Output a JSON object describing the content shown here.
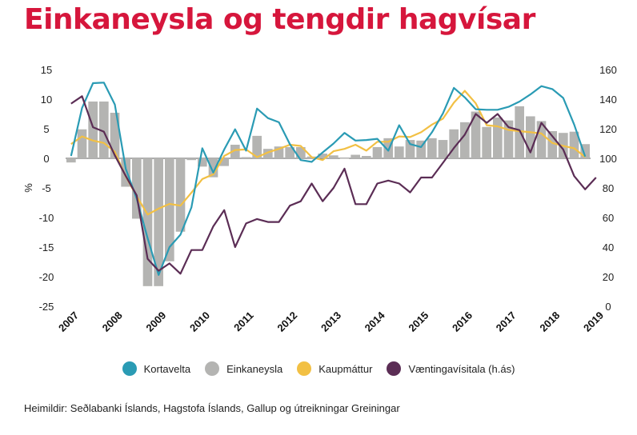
{
  "title": "Einkaneysla og tengdir hagvísar",
  "source": "Heimildir: Seðlabanki Íslands, Hagstofa Íslands, Gallup og útreikningar Greiningar",
  "colors": {
    "title": "#d6163c",
    "kortavelta": "#2a9bb4",
    "einkaneysla": "#b4b4b2",
    "kaupmattur": "#f2c044",
    "vantingavisitala": "#5b2d55"
  },
  "chart_data": {
    "type": "bar",
    "xlabel": "",
    "ylabel": "%",
    "ylim": [
      -25,
      15
    ],
    "y2lim": [
      0,
      160
    ],
    "yticks": [
      15,
      10,
      5,
      0,
      -5,
      -10,
      -15,
      -20,
      -25
    ],
    "y2ticks": [
      160,
      140,
      120,
      100,
      80,
      60,
      40,
      20,
      0
    ],
    "xticks": [
      "2007",
      "2008",
      "2009",
      "2010",
      "2011",
      "2012",
      "2013",
      "2014",
      "2015",
      "2016",
      "2017",
      "2018",
      "2019"
    ],
    "x_start": 2007,
    "legend_position": "bottom",
    "series": [
      {
        "name": "Einkaneysla",
        "kind": "bar",
        "values": [
          -0.7,
          4.9,
          9.6,
          9.6,
          7.7,
          -4.8,
          -10.2,
          -21.6,
          -21.6,
          -17.4,
          -12.4,
          -0.3,
          -1.4,
          -3.2,
          -1.3,
          2.3,
          0.2,
          3.8,
          1.6,
          2.0,
          1.9,
          1.9,
          0.3,
          0.8,
          0.5,
          0.0,
          0.6,
          0.4,
          1.9,
          3.4,
          2.0,
          3.1,
          3.0,
          3.4,
          3.1,
          4.9,
          6.1,
          7.9,
          5.3,
          6.9,
          6.4,
          8.8,
          7.1,
          6.3,
          4.6,
          4.3,
          4.5,
          2.4
        ]
      },
      {
        "name": "Kortavelta",
        "kind": "line",
        "axis": "left",
        "values": [
          0.4,
          8.5,
          12.7,
          12.8,
          9.1,
          -1.8,
          -6.8,
          -13.5,
          -19.7,
          -15.0,
          -12.9,
          -8.3,
          1.7,
          -2.4,
          1.5,
          4.9,
          1.3,
          8.4,
          6.8,
          6.1,
          2.4,
          -0.3,
          -0.6,
          1.0,
          2.5,
          4.3,
          3.0,
          3.1,
          3.3,
          1.3,
          5.6,
          2.4,
          1.9,
          4.4,
          7.6,
          11.9,
          10.3,
          8.3,
          8.2,
          8.2,
          8.7,
          9.6,
          10.8,
          12.2,
          11.7,
          10.2,
          5.7,
          0.3
        ]
      },
      {
        "name": "Kaupmáttur",
        "kind": "line",
        "axis": "left",
        "values": [
          2.4,
          3.7,
          3.0,
          2.6,
          1.1,
          -3.1,
          -6.4,
          -9.5,
          -8.5,
          -7.7,
          -8.0,
          -5.8,
          -3.5,
          -2.7,
          0.4,
          1.4,
          1.5,
          0.2,
          1.0,
          1.6,
          2.3,
          2.1,
          0.2,
          -0.3,
          1.2,
          1.6,
          2.3,
          1.3,
          2.8,
          2.8,
          3.7,
          3.6,
          4.4,
          5.7,
          6.7,
          9.4,
          11.4,
          9.3,
          5.6,
          5.4,
          4.8,
          4.6,
          4.4,
          4.2,
          2.6,
          2.1,
          1.7,
          0.2
        ]
      },
      {
        "name": "Væntingavísitala (h.ás)",
        "kind": "line",
        "axis": "right",
        "values": [
          137,
          142,
          121,
          118,
          102,
          88,
          75,
          32,
          24,
          29,
          22,
          38,
          38,
          54,
          65,
          40,
          56,
          59,
          57,
          57,
          68,
          71,
          83,
          71,
          80,
          93,
          69,
          69,
          83,
          85,
          83,
          77,
          87,
          87,
          97,
          107,
          116,
          130,
          124,
          130,
          121,
          119,
          104,
          124,
          115,
          106,
          88,
          79,
          87
        ]
      }
    ]
  }
}
